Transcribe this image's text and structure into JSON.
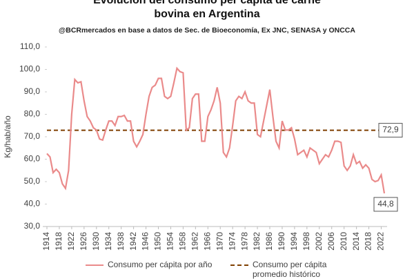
{
  "chart_data": {
    "type": "line",
    "title": "Evolución del consumo per cápita de carne bovina en Argentina",
    "subtitle": "@BCRmercados  en base a datos de Sec. de Bioeconomía,  Ex JNC, SENASA y ONCCA",
    "y_label": "Kg/hab/año",
    "x": [
      1914,
      1915,
      1916,
      1917,
      1918,
      1919,
      1920,
      1921,
      1922,
      1923,
      1924,
      1925,
      1926,
      1927,
      1928,
      1929,
      1930,
      1931,
      1932,
      1933,
      1934,
      1935,
      1936,
      1937,
      1938,
      1939,
      1940,
      1941,
      1942,
      1943,
      1944,
      1945,
      1946,
      1947,
      1948,
      1949,
      1950,
      1951,
      1952,
      1953,
      1954,
      1955,
      1956,
      1957,
      1958,
      1959,
      1960,
      1961,
      1962,
      1963,
      1964,
      1965,
      1966,
      1967,
      1968,
      1969,
      1970,
      1971,
      1972,
      1973,
      1974,
      1975,
      1976,
      1977,
      1978,
      1979,
      1980,
      1981,
      1982,
      1983,
      1984,
      1985,
      1986,
      1987,
      1988,
      1989,
      1990,
      1991,
      1992,
      1993,
      1994,
      1995,
      1996,
      1997,
      1998,
      1999,
      2000,
      2001,
      2002,
      2003,
      2004,
      2005,
      2006,
      2007,
      2008,
      2009,
      2010,
      2011,
      2012,
      2013,
      2014,
      2015,
      2016,
      2017,
      2018,
      2019,
      2020,
      2021,
      2022,
      2023
    ],
    "series": [
      {
        "name": "Consumo per cápita por año",
        "color": "#ea8a8a",
        "values": [
          62.5,
          61,
          54,
          55.5,
          54,
          49,
          47,
          55,
          80,
          95.5,
          94,
          94.5,
          86,
          79,
          77,
          74,
          73,
          69,
          68.5,
          73,
          77,
          77,
          75,
          79,
          79,
          79.5,
          77,
          77,
          68,
          65.5,
          68,
          71,
          80,
          88,
          92,
          93,
          96,
          96,
          88,
          87,
          88,
          94,
          100.5,
          99,
          98.5,
          73,
          74,
          87,
          89,
          89,
          68,
          68,
          79,
          82,
          86,
          92,
          85,
          63,
          61,
          65,
          75,
          86,
          88,
          87,
          90,
          86,
          85,
          85,
          71,
          70,
          77,
          84,
          91,
          79,
          68,
          65,
          77,
          73,
          73,
          74,
          69,
          62,
          63,
          64,
          61,
          65,
          64,
          63,
          58,
          60,
          62,
          61,
          64,
          68,
          68,
          67.5,
          57,
          55,
          57,
          62,
          58,
          59,
          56,
          57.5,
          56,
          51,
          50,
          50.5,
          53,
          44.8
        ],
        "end_label": "44,8"
      },
      {
        "name": "Consumo per cápita promedio histórico",
        "color": "#7f3f00",
        "dashed": true,
        "value": 72.9,
        "value_label": "72,9"
      }
    ],
    "xlim": [
      1914,
      2023
    ],
    "xticks": [
      1914,
      1918,
      1922,
      1926,
      1930,
      1934,
      1938,
      1942,
      1946,
      1950,
      1954,
      1958,
      1962,
      1966,
      1970,
      1974,
      1978,
      1982,
      1986,
      1990,
      1994,
      1998,
      2002,
      2006,
      2010,
      2014,
      2018,
      2022
    ],
    "ylim": [
      30,
      110
    ],
    "yticks": [
      {
        "value": 30,
        "label": "30,0"
      },
      {
        "value": 40,
        "label": "40,0"
      },
      {
        "value": 50,
        "label": "50,0"
      },
      {
        "value": 60,
        "label": "60,0"
      },
      {
        "value": 70,
        "label": "70,0"
      },
      {
        "value": 80,
        "label": "80,0"
      },
      {
        "value": 90,
        "label": "90,0"
      },
      {
        "value": 100,
        "label": "100,0"
      },
      {
        "value": 110,
        "label": "110,0"
      }
    ],
    "grid": false
  }
}
